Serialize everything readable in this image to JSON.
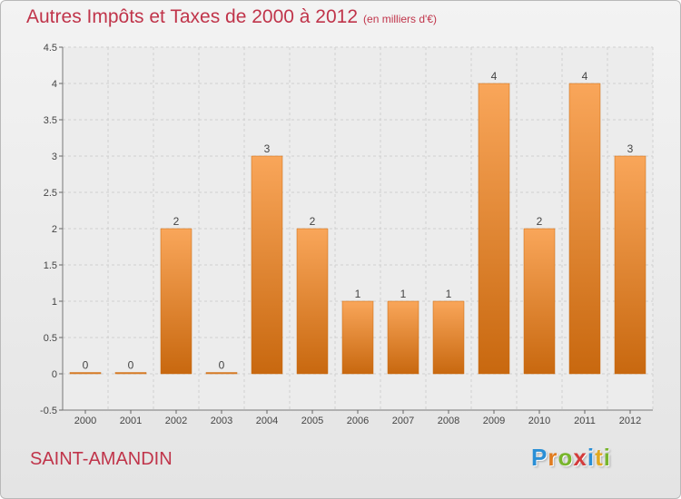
{
  "header": {
    "title": "Autres Impôts et Taxes de 2000 à 2012",
    "unit": "(en milliers d'€)"
  },
  "footer": {
    "commune": "SAINT-AMANDIN",
    "brand": "Proxiti",
    "brand_letters": [
      {
        "ch": "P",
        "color": "#2a8fd6"
      },
      {
        "ch": "r",
        "color": "#e07b1f"
      },
      {
        "ch": "o",
        "color": "#78b52c"
      },
      {
        "ch": "x",
        "color": "#d33b3b"
      },
      {
        "ch": "i",
        "color": "#2a8fd6"
      },
      {
        "ch": "t",
        "color": "#e0a81f"
      },
      {
        "ch": "i",
        "color": "#78b52c"
      }
    ]
  },
  "chart_data": {
    "type": "bar",
    "title": "Autres Impôts et Taxes de 2000 à 2012",
    "subtitle": "(en milliers d'€)",
    "xlabel": "",
    "ylabel": "",
    "categories": [
      "2000",
      "2001",
      "2002",
      "2003",
      "2004",
      "2005",
      "2006",
      "2007",
      "2008",
      "2009",
      "2010",
      "2011",
      "2012"
    ],
    "values": [
      0,
      0,
      2,
      0,
      3,
      2,
      1,
      1,
      1,
      4,
      2,
      4,
      3
    ],
    "data_labels": [
      "0",
      "0",
      "2",
      "0",
      "3",
      "2",
      "1",
      "1",
      "1",
      "4",
      "2",
      "4",
      "3"
    ],
    "ylim": [
      -0.5,
      4.5
    ],
    "yticks": [
      -0.5,
      0,
      0.5,
      1,
      1.5,
      2,
      2.5,
      3,
      3.5,
      4,
      4.5
    ],
    "ytick_labels": [
      "-0.5",
      "0",
      "0.5",
      "1",
      "1.5",
      "2",
      "2.5",
      "3",
      "3.5",
      "4",
      "4.5"
    ],
    "grid": true,
    "bar_color": "#f28c2c",
    "bar_color_light": "#f9a65a",
    "bar_color_dark": "#c8680f",
    "text_color": "#c0344a"
  }
}
